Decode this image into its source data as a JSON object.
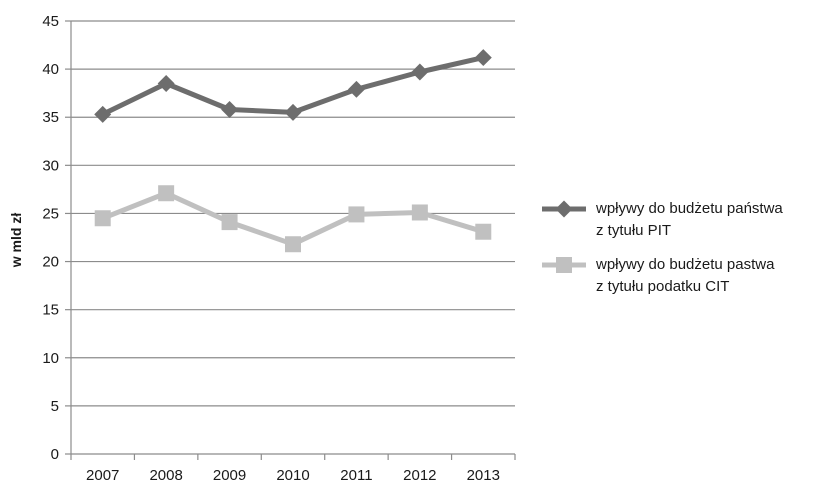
{
  "chart_data": {
    "type": "line",
    "title": "",
    "xlabel": "",
    "ylabel": "w mld zł",
    "categories": [
      "2007",
      "2008",
      "2009",
      "2010",
      "2011",
      "2012",
      "2013"
    ],
    "ylim": [
      0,
      45
    ],
    "yticks": [
      0,
      5,
      10,
      15,
      20,
      25,
      30,
      35,
      40,
      45
    ],
    "grid": "horizontal",
    "legend_position": "right",
    "series": [
      {
        "name": "wpływy do budżetu państwa\nz tytułu PIT",
        "values": [
          35.3,
          38.5,
          35.8,
          35.5,
          37.9,
          39.7,
          41.2
        ],
        "color": "#6d6d6d",
        "marker": "diamond"
      },
      {
        "name": "wpływy do budżetu pastwa\nz tytułu podatku CIT",
        "values": [
          24.5,
          27.1,
          24.1,
          21.8,
          24.9,
          25.1,
          23.1
        ],
        "color": "#c0c0c0",
        "marker": "square"
      }
    ]
  }
}
